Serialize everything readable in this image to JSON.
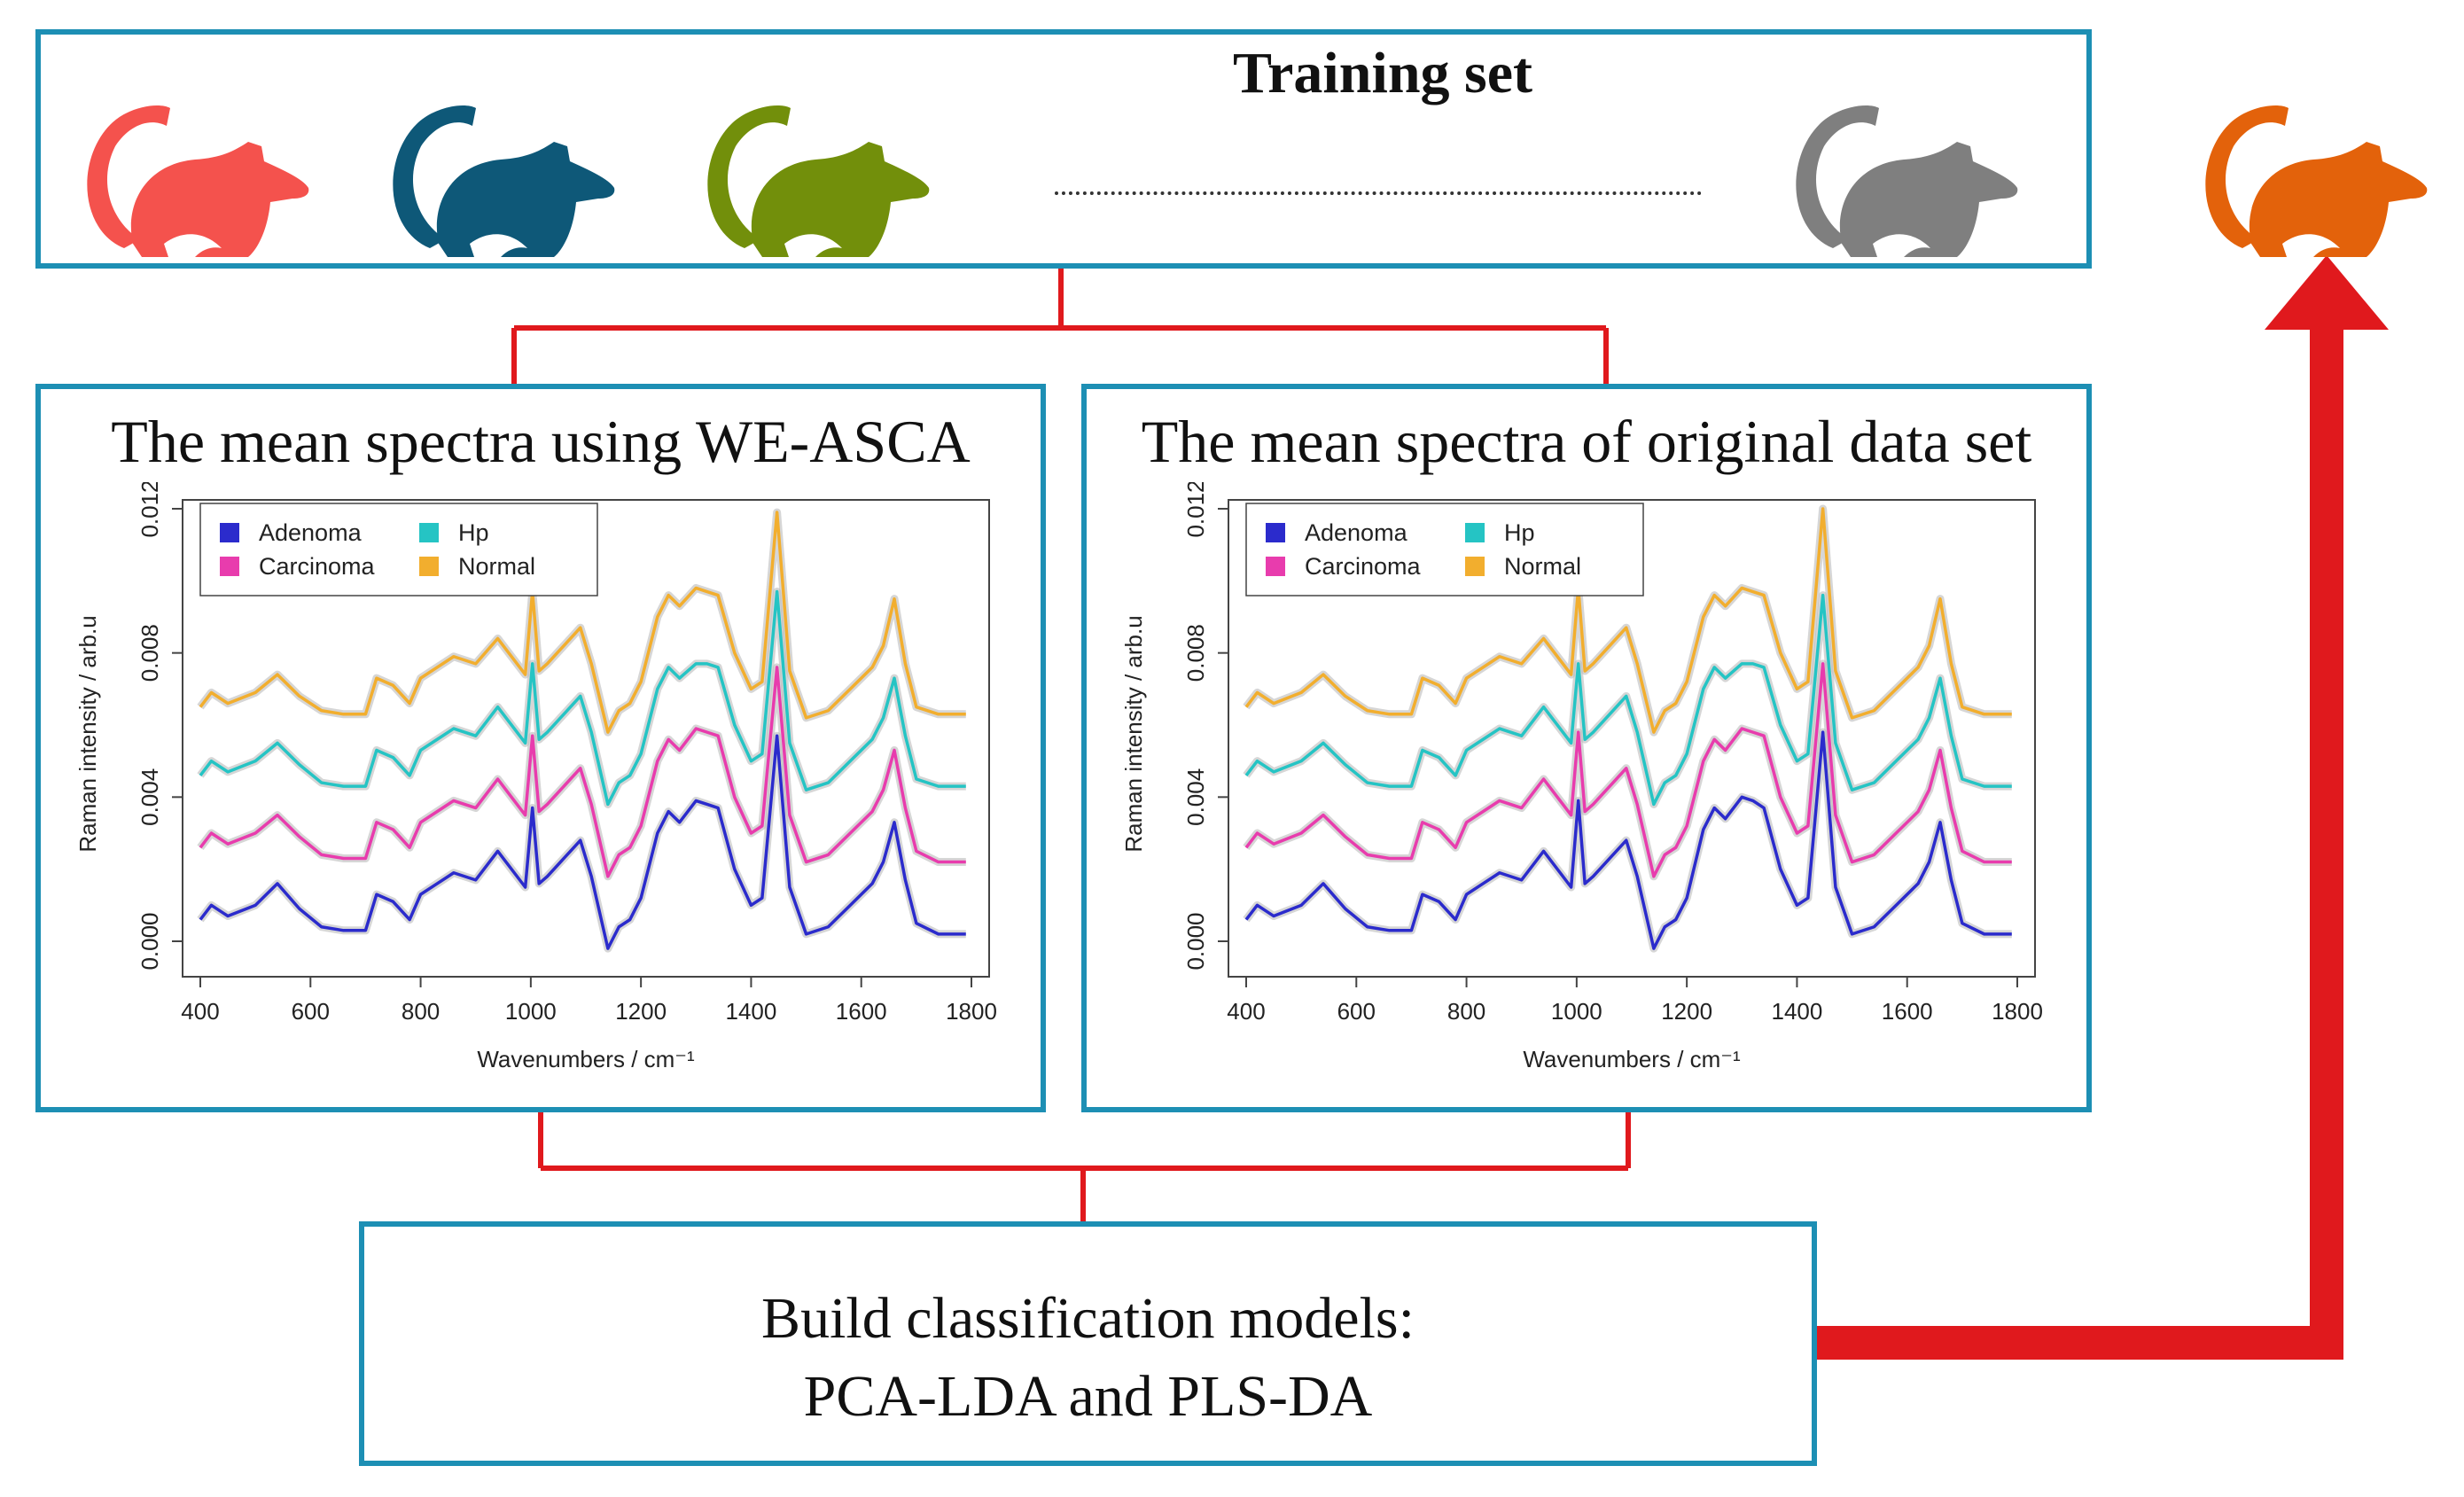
{
  "training": {
    "title": "Training set"
  },
  "rats": [
    {
      "name": "red-rat",
      "color": "#f4524d"
    },
    {
      "name": "navy-rat",
      "color": "#0e5878"
    },
    {
      "name": "green-rat",
      "color": "#728f0b"
    },
    {
      "name": "gray-rat",
      "color": "#7f7f7f"
    },
    {
      "name": "orange-rat",
      "color": "#e3620b"
    }
  ],
  "panels": {
    "weasca": {
      "title": "The mean spectra using WE-ASCA"
    },
    "original": {
      "title": "The mean spectra of original data set"
    }
  },
  "build": {
    "line1": "Build classification models:",
    "line2": "PCA-LDA and PLS-DA"
  },
  "colors": {
    "box_border": "#1d8fb4",
    "connector": "#e0191d",
    "arrow": "#e0191d"
  },
  "chart_data": [
    {
      "type": "line",
      "title": "The mean spectra using WE-ASCA",
      "xlabel": "Wavenumbers / cm⁻¹",
      "ylabel": "Raman intensity / arb.u",
      "xlim": [
        400,
        1800
      ],
      "ylim": [
        0.0,
        0.012
      ],
      "xticks": [
        "400",
        "600",
        "800",
        "1000",
        "1200",
        "1400",
        "1600",
        "1800"
      ],
      "yticks": [
        "0.000",
        "0.004",
        "0.008",
        "0.012"
      ],
      "legend": {
        "position": "top-left",
        "entries": [
          "Adenoma",
          "Hp",
          "Carcinoma",
          "Normal"
        ]
      },
      "x": [
        400,
        420,
        450,
        500,
        540,
        580,
        620,
        660,
        700,
        720,
        750,
        780,
        800,
        830,
        860,
        900,
        940,
        960,
        990,
        1003,
        1015,
        1030,
        1060,
        1090,
        1110,
        1140,
        1160,
        1180,
        1200,
        1230,
        1250,
        1270,
        1300,
        1320,
        1340,
        1370,
        1400,
        1420,
        1447,
        1470,
        1500,
        1540,
        1580,
        1620,
        1640,
        1660,
        1680,
        1700,
        1740,
        1790
      ],
      "series": [
        {
          "name": "Adenoma",
          "color": "#2b2bcc",
          "values": [
            0.0006,
            0.001,
            0.0007,
            0.001,
            0.0016,
            0.0009,
            0.0004,
            0.0003,
            0.0003,
            0.0013,
            0.0011,
            0.0006,
            0.0013,
            0.0016,
            0.0019,
            0.0017,
            0.0025,
            0.0021,
            0.0015,
            0.0037,
            0.0016,
            0.0018,
            0.0023,
            0.0028,
            0.0018,
            -0.0002,
            0.0004,
            0.0006,
            0.0012,
            0.003,
            0.0036,
            0.0033,
            0.0039,
            0.0038,
            0.0037,
            0.002,
            0.001,
            0.0012,
            0.0057,
            0.0015,
            0.0002,
            0.0004,
            0.001,
            0.0016,
            0.0022,
            0.0033,
            0.0017,
            0.0005,
            0.0002,
            0.0002
          ]
        },
        {
          "name": "Carcinoma",
          "color": "#e83cad",
          "values": [
            0.0026,
            0.003,
            0.0027,
            0.003,
            0.0035,
            0.0029,
            0.0024,
            0.0023,
            0.0023,
            0.0033,
            0.0031,
            0.0026,
            0.0033,
            0.0036,
            0.0039,
            0.0037,
            0.0045,
            0.0041,
            0.0035,
            0.0057,
            0.0036,
            0.0038,
            0.0043,
            0.0048,
            0.0038,
            0.0018,
            0.0024,
            0.0026,
            0.0032,
            0.005,
            0.0056,
            0.0053,
            0.0059,
            0.0058,
            0.0057,
            0.004,
            0.003,
            0.0032,
            0.0076,
            0.0035,
            0.0022,
            0.0024,
            0.003,
            0.0036,
            0.0042,
            0.0053,
            0.0037,
            0.0025,
            0.0022,
            0.0022
          ]
        },
        {
          "name": "Hp",
          "color": "#25c4c4",
          "values": [
            0.0046,
            0.005,
            0.0047,
            0.005,
            0.0055,
            0.0049,
            0.0044,
            0.0043,
            0.0043,
            0.0053,
            0.0051,
            0.0046,
            0.0053,
            0.0056,
            0.0059,
            0.0057,
            0.0065,
            0.0061,
            0.0055,
            0.0077,
            0.0056,
            0.0058,
            0.0063,
            0.0068,
            0.0058,
            0.0038,
            0.0044,
            0.0046,
            0.0052,
            0.007,
            0.0076,
            0.0073,
            0.0077,
            0.0077,
            0.0076,
            0.006,
            0.005,
            0.0052,
            0.0097,
            0.0055,
            0.0042,
            0.0044,
            0.005,
            0.0056,
            0.0062,
            0.0073,
            0.0057,
            0.0045,
            0.0043,
            0.0043
          ]
        },
        {
          "name": "Normal",
          "color": "#f2ae2e",
          "values": [
            0.0065,
            0.0069,
            0.0066,
            0.0069,
            0.0074,
            0.0068,
            0.0064,
            0.0063,
            0.0063,
            0.0073,
            0.0071,
            0.0066,
            0.0073,
            0.0076,
            0.0079,
            0.0077,
            0.0084,
            0.008,
            0.0074,
            0.0097,
            0.0075,
            0.0077,
            0.0082,
            0.0087,
            0.0077,
            0.0058,
            0.0064,
            0.0066,
            0.0072,
            0.009,
            0.0096,
            0.0093,
            0.0098,
            0.0097,
            0.0096,
            0.008,
            0.007,
            0.0072,
            0.0119,
            0.0075,
            0.0062,
            0.0064,
            0.007,
            0.0076,
            0.0082,
            0.0095,
            0.0077,
            0.0065,
            0.0063,
            0.0063
          ]
        }
      ]
    },
    {
      "type": "line",
      "title": "The mean spectra of original data set",
      "xlabel": "Wavenumbers / cm⁻¹",
      "ylabel": "Raman intensity / arb.u",
      "xlim": [
        400,
        1800
      ],
      "ylim": [
        0.0,
        0.012
      ],
      "xticks": [
        "400",
        "600",
        "800",
        "1000",
        "1200",
        "1400",
        "1600",
        "1800"
      ],
      "yticks": [
        "0.000",
        "0.004",
        "0.008",
        "0.012"
      ],
      "legend": {
        "position": "top-left",
        "entries": [
          "Adenoma",
          "Hp",
          "Carcinoma",
          "Normal"
        ]
      },
      "x": [
        400,
        420,
        450,
        500,
        540,
        580,
        620,
        660,
        700,
        720,
        750,
        780,
        800,
        830,
        860,
        900,
        940,
        960,
        990,
        1003,
        1015,
        1030,
        1060,
        1090,
        1110,
        1140,
        1160,
        1180,
        1200,
        1230,
        1250,
        1270,
        1300,
        1320,
        1340,
        1370,
        1400,
        1420,
        1447,
        1470,
        1500,
        1540,
        1580,
        1620,
        1640,
        1660,
        1680,
        1700,
        1740,
        1790
      ],
      "series": [
        {
          "name": "Adenoma",
          "color": "#2b2bcc",
          "values": [
            0.0006,
            0.001,
            0.0007,
            0.001,
            0.0016,
            0.0009,
            0.0004,
            0.0003,
            0.0003,
            0.0013,
            0.0011,
            0.0006,
            0.0013,
            0.0016,
            0.0019,
            0.0017,
            0.0025,
            0.0021,
            0.0015,
            0.0039,
            0.0016,
            0.0018,
            0.0023,
            0.0028,
            0.0018,
            -0.0002,
            0.0004,
            0.0006,
            0.0012,
            0.0031,
            0.0037,
            0.0034,
            0.004,
            0.0039,
            0.0037,
            0.002,
            0.001,
            0.0012,
            0.0058,
            0.0015,
            0.0002,
            0.0004,
            0.001,
            0.0016,
            0.0022,
            0.0033,
            0.0017,
            0.0005,
            0.0002,
            0.0002
          ]
        },
        {
          "name": "Carcinoma",
          "color": "#e83cad",
          "values": [
            0.0026,
            0.003,
            0.0027,
            0.003,
            0.0035,
            0.0029,
            0.0024,
            0.0023,
            0.0023,
            0.0033,
            0.0031,
            0.0026,
            0.0033,
            0.0036,
            0.0039,
            0.0037,
            0.0045,
            0.0041,
            0.0035,
            0.0058,
            0.0036,
            0.0038,
            0.0043,
            0.0048,
            0.0038,
            0.0018,
            0.0024,
            0.0026,
            0.0032,
            0.005,
            0.0056,
            0.0053,
            0.0059,
            0.0058,
            0.0057,
            0.004,
            0.003,
            0.0032,
            0.0077,
            0.0035,
            0.0022,
            0.0024,
            0.003,
            0.0036,
            0.0042,
            0.0053,
            0.0037,
            0.0025,
            0.0022,
            0.0022
          ]
        },
        {
          "name": "Hp",
          "color": "#25c4c4",
          "values": [
            0.0046,
            0.005,
            0.0047,
            0.005,
            0.0055,
            0.0049,
            0.0044,
            0.0043,
            0.0043,
            0.0053,
            0.0051,
            0.0046,
            0.0053,
            0.0056,
            0.0059,
            0.0057,
            0.0065,
            0.0061,
            0.0055,
            0.0077,
            0.0056,
            0.0058,
            0.0063,
            0.0068,
            0.0058,
            0.0038,
            0.0044,
            0.0046,
            0.0052,
            0.007,
            0.0076,
            0.0073,
            0.0077,
            0.0077,
            0.0076,
            0.006,
            0.005,
            0.0052,
            0.0096,
            0.0055,
            0.0042,
            0.0044,
            0.005,
            0.0056,
            0.0062,
            0.0073,
            0.0057,
            0.0045,
            0.0043,
            0.0043
          ]
        },
        {
          "name": "Normal",
          "color": "#f2ae2e",
          "values": [
            0.0065,
            0.0069,
            0.0066,
            0.0069,
            0.0074,
            0.0068,
            0.0064,
            0.0063,
            0.0063,
            0.0073,
            0.0071,
            0.0066,
            0.0073,
            0.0076,
            0.0079,
            0.0077,
            0.0084,
            0.008,
            0.0074,
            0.0098,
            0.0075,
            0.0077,
            0.0082,
            0.0087,
            0.0077,
            0.0058,
            0.0064,
            0.0066,
            0.0072,
            0.009,
            0.0096,
            0.0093,
            0.0098,
            0.0097,
            0.0096,
            0.008,
            0.007,
            0.0072,
            0.012,
            0.0075,
            0.0062,
            0.0064,
            0.007,
            0.0076,
            0.0082,
            0.0095,
            0.0077,
            0.0065,
            0.0063,
            0.0063
          ]
        }
      ]
    }
  ]
}
